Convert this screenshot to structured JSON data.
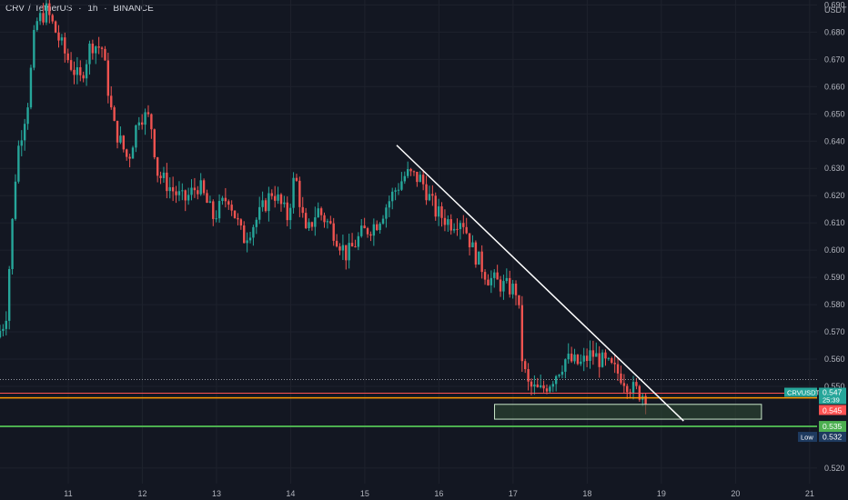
{
  "header": {
    "symbol": "CRV",
    "separator": "/",
    "quote": "TetherUS",
    "interval": "1h",
    "exchange": "BINANCE"
  },
  "colors": {
    "background": "#131722",
    "grid": "#1e222d",
    "up": "#26a69a",
    "down": "#ef5350",
    "axis_text": "#b2b5be",
    "trendline": "#ffffff",
    "support_line": "#4caf50",
    "resistance_line": "#ff5252",
    "zone_fill": "#2e4a33",
    "zone_border": "#c8e6c9"
  },
  "chart_data": {
    "type": "candlestick",
    "axis_unit": "USDT",
    "y_ticks": [
      "0.690",
      "0.680",
      "0.670",
      "0.660",
      "0.650",
      "0.640",
      "0.630",
      "0.620",
      "0.610",
      "0.600",
      "0.590",
      "0.580",
      "0.570",
      "0.560",
      "0.550",
      "0.520"
    ],
    "y_tick_values": [
      0.69,
      0.68,
      0.67,
      0.66,
      0.65,
      0.64,
      0.63,
      0.62,
      0.61,
      0.6,
      0.59,
      0.58,
      0.57,
      0.56,
      0.55,
      0.52
    ],
    "ylim": [
      0.5143,
      0.6918
    ],
    "x_ticks": [
      "11",
      "12",
      "13",
      "14",
      "15",
      "16",
      "17",
      "18",
      "19",
      "20",
      "21"
    ],
    "x_tick_days": [
      11,
      12,
      13,
      14,
      15,
      16,
      17,
      18,
      19,
      20,
      21
    ],
    "xlim_days": [
      10.08,
      21.1
    ],
    "price_labels": [
      {
        "name": "CRVUSDT",
        "value": "0.547",
        "countdown": "25:39",
        "kind": "current"
      },
      {
        "name": "",
        "value": "0.545",
        "kind": "red-line"
      },
      {
        "name": "",
        "value": "0.535",
        "kind": "green-line"
      },
      {
        "name": "Low",
        "value": "0.532",
        "kind": "low"
      }
    ],
    "levels": {
      "dotted": 0.5525,
      "red_line_1": 0.5475,
      "red_line_2": 0.5458,
      "green_line": 0.5353
    },
    "trendline": {
      "start": [
        15.43,
        0.6385
      ],
      "end": [
        19.3,
        0.5373
      ]
    },
    "zone": {
      "x_start": 16.75,
      "x_end": 20.35,
      "y_top": 0.5434,
      "y_bottom": 0.5413
    },
    "ohlc_anchors": [
      [
        10.08,
        0.568
      ],
      [
        10.2,
        0.575
      ],
      [
        10.35,
        0.635
      ],
      [
        10.5,
        0.655
      ],
      [
        10.6,
        0.683
      ],
      [
        10.75,
        0.688
      ],
      [
        11.0,
        0.672
      ],
      [
        11.2,
        0.662
      ],
      [
        11.35,
        0.676
      ],
      [
        11.5,
        0.674
      ],
      [
        11.65,
        0.646
      ],
      [
        11.85,
        0.633
      ],
      [
        12.0,
        0.65
      ],
      [
        12.15,
        0.648
      ],
      [
        12.25,
        0.628
      ],
      [
        12.45,
        0.622
      ],
      [
        12.6,
        0.618
      ],
      [
        12.8,
        0.624
      ],
      [
        13.0,
        0.612
      ],
      [
        13.2,
        0.62
      ],
      [
        13.4,
        0.604
      ],
      [
        13.6,
        0.612
      ],
      [
        13.8,
        0.622
      ],
      [
        14.0,
        0.612
      ],
      [
        14.1,
        0.628
      ],
      [
        14.25,
        0.605
      ],
      [
        14.4,
        0.615
      ],
      [
        14.6,
        0.608
      ],
      [
        14.8,
        0.598
      ],
      [
        15.0,
        0.606
      ],
      [
        15.2,
        0.61
      ],
      [
        15.45,
        0.622
      ],
      [
        15.6,
        0.628
      ],
      [
        15.8,
        0.626
      ],
      [
        16.0,
        0.614
      ],
      [
        16.2,
        0.61
      ],
      [
        16.35,
        0.612
      ],
      [
        16.5,
        0.6
      ],
      [
        16.7,
        0.59
      ],
      [
        16.9,
        0.587
      ],
      [
        17.1,
        0.585
      ],
      [
        17.17,
        0.558
      ],
      [
        17.25,
        0.55
      ],
      [
        17.4,
        0.548
      ],
      [
        17.55,
        0.552
      ],
      [
        17.75,
        0.56
      ],
      [
        17.95,
        0.558
      ],
      [
        18.1,
        0.562
      ],
      [
        18.3,
        0.558
      ],
      [
        18.5,
        0.554
      ],
      [
        18.65,
        0.549
      ],
      [
        18.8,
        0.547
      ]
    ]
  }
}
